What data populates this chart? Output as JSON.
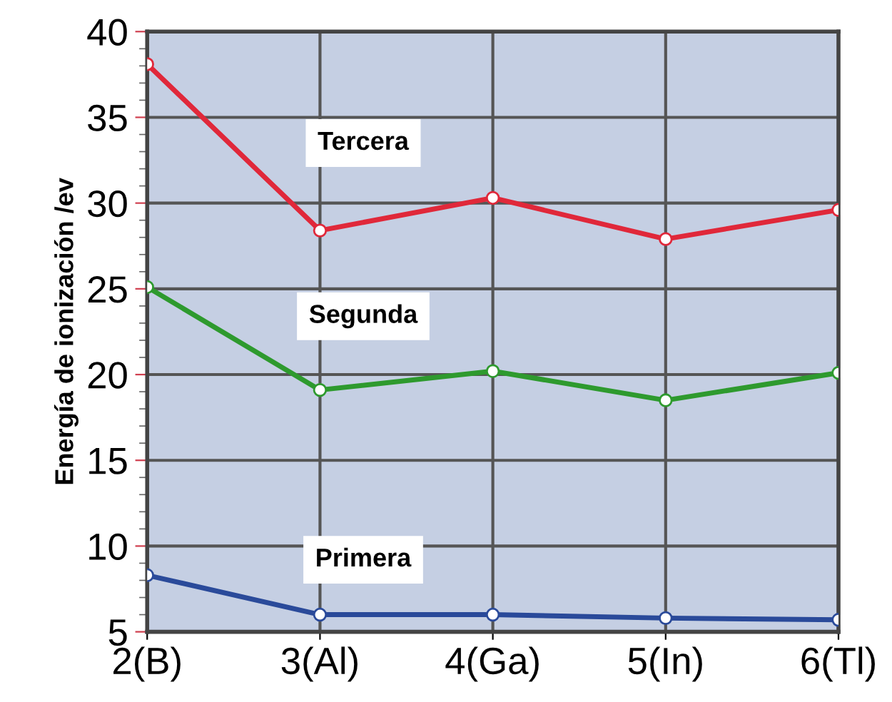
{
  "chart_data": {
    "type": "line",
    "ylabel": "Energía de ionización /ev",
    "categories": [
      "2(B)",
      "3(Al)",
      "4(Ga)",
      "5(In)",
      "6(Tl)"
    ],
    "series": [
      {
        "name": "Tercera",
        "color": "#e0283a",
        "values": [
          38.1,
          28.4,
          30.3,
          27.9,
          29.6
        ]
      },
      {
        "name": "Segunda",
        "color": "#2e9a2e",
        "values": [
          25.1,
          19.1,
          20.2,
          18.5,
          20.1
        ]
      },
      {
        "name": "Primera",
        "color": "#2a4a9a",
        "values": [
          8.3,
          6.0,
          6.0,
          5.8,
          5.7
        ]
      }
    ],
    "ylim": [
      5,
      40
    ],
    "yticks": [
      5,
      10,
      15,
      20,
      25,
      30,
      35,
      40
    ],
    "grid": true,
    "marker": "circle",
    "line_style": "solid"
  }
}
